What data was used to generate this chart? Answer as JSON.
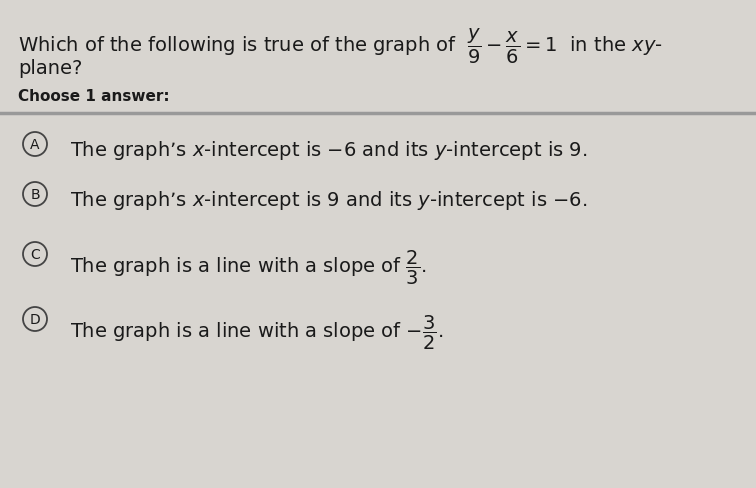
{
  "bg_color": "#d8d5d0",
  "text_color": "#1a1a1a",
  "circle_color": "#444444",
  "title_part1": "Which of the following is true of the graph of ",
  "title_eq": "$\\dfrac{y}{9} - \\dfrac{x}{6} = 1$",
  "title_part2": " in the $xy$-",
  "title_line2": "plane?",
  "choose_label": "Choose 1 answer:",
  "options": [
    {
      "letter": "A",
      "line1": "The graph’s $x$-intercept is $-6$ and its $y$-intercept is $9$.",
      "line2": null
    },
    {
      "letter": "B",
      "line1": "The graph’s $x$-intercept is $9$ and its $y$-intercept is $-6$.",
      "line2": null
    },
    {
      "letter": "C",
      "line1": "The graph is a line with a slope of $\\dfrac{2}{3}$.",
      "line2": null
    },
    {
      "letter": "D",
      "line1": "The graph is a line with a slope of $-\\dfrac{3}{2}$.",
      "line2": null
    }
  ],
  "separator_color": "#999999",
  "title_fontsize": 14,
  "choose_fontsize": 11,
  "option_fontsize": 14,
  "letter_fontsize": 10
}
